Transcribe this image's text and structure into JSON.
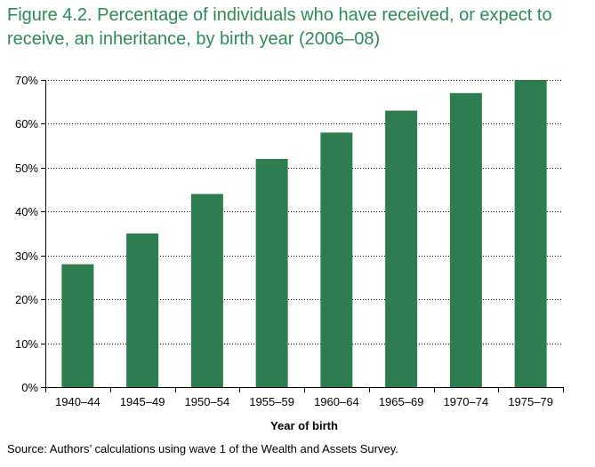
{
  "title": "Figure 4.2. Percentage of individuals who have received, or expect to receive, an inheritance, by birth year (2006–08)",
  "source": "Source: Authors’ calculations using wave 1 of the Wealth and Assets Survey.",
  "colors": {
    "bar": "#2e7d50",
    "title": "#2e8a57",
    "grid": "#000000"
  },
  "chart_data": {
    "type": "bar",
    "title": "Figure 4.2. Percentage of individuals who have received, or expect to receive, an inheritance, by birth year (2006–08)",
    "xlabel": "Year of birth",
    "ylabel": "",
    "categories": [
      "1940–44",
      "1945–49",
      "1950–54",
      "1955–59",
      "1960–64",
      "1965–69",
      "1970–74",
      "1975–79"
    ],
    "values": [
      28,
      35,
      44,
      52,
      58,
      63,
      67,
      70
    ],
    "ylim": [
      0,
      70
    ],
    "yticks": [
      0,
      10,
      20,
      30,
      40,
      50,
      60,
      70
    ],
    "ytick_labels": [
      "0%",
      "10%",
      "20%",
      "30%",
      "40%",
      "50%",
      "60%",
      "70%"
    ],
    "grid": true,
    "grid_style": "dotted",
    "legend": "none"
  }
}
